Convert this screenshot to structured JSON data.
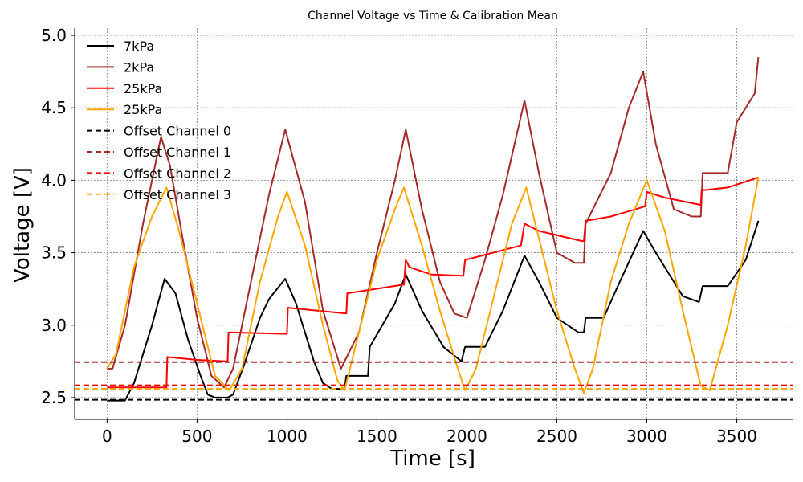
{
  "chart_data": {
    "type": "line",
    "title": "Channel Voltage vs Time & Calibration Mean",
    "xlabel": "Time [s]",
    "ylabel": "Voltage [V]",
    "xlim": [
      -180,
      3810
    ],
    "ylim": [
      2.35,
      5.05
    ],
    "xticks": [
      0,
      500,
      1000,
      1500,
      2000,
      2500,
      3000,
      3500
    ],
    "yticks": [
      2.5,
      3.0,
      3.5,
      4.0,
      4.5,
      5.0
    ],
    "xtick_labels": [
      "0",
      "500",
      "1000",
      "1500",
      "2000",
      "2500",
      "3000",
      "3500"
    ],
    "ytick_labels": [
      "2.5",
      "3.0",
      "3.5",
      "4.0",
      "4.5",
      "5.0"
    ],
    "grid": true,
    "legend_position": "top-left",
    "series": [
      {
        "name": "7kPa",
        "color": "#000000",
        "style": "solid",
        "x": [
          0,
          100,
          150,
          250,
          320,
          380,
          450,
          520,
          560,
          600,
          670,
          700,
          760,
          850,
          900,
          990,
          1050,
          1150,
          1200,
          1250,
          1320,
          1330,
          1450,
          1460,
          1600,
          1660,
          1750,
          1870,
          1970,
          1990,
          2100,
          2200,
          2320,
          2400,
          2500,
          2620,
          2650,
          2660,
          2760,
          2850,
          2980,
          3050,
          3150,
          3200,
          3290,
          3310,
          3450,
          3550,
          3620
        ],
        "y": [
          2.48,
          2.48,
          2.6,
          3.0,
          3.32,
          3.22,
          2.9,
          2.65,
          2.52,
          2.5,
          2.5,
          2.52,
          2.72,
          3.05,
          3.18,
          3.32,
          3.15,
          2.75,
          2.6,
          2.56,
          2.56,
          2.65,
          2.65,
          2.85,
          3.15,
          3.35,
          3.1,
          2.85,
          2.75,
          2.85,
          2.85,
          3.1,
          3.48,
          3.3,
          3.05,
          2.95,
          2.95,
          3.05,
          3.05,
          3.3,
          3.65,
          3.5,
          3.3,
          3.2,
          3.16,
          3.27,
          3.27,
          3.45,
          3.72
        ]
      },
      {
        "name": "2kPa",
        "color": "#a52a2a",
        "style": "solid",
        "x": [
          0,
          30,
          100,
          200,
          300,
          350,
          420,
          500,
          580,
          650,
          700,
          800,
          900,
          990,
          1100,
          1200,
          1300,
          1400,
          1500,
          1600,
          1660,
          1750,
          1850,
          1930,
          2000,
          2100,
          2200,
          2320,
          2400,
          2500,
          2600,
          2650,
          2660,
          2800,
          2900,
          2980,
          3050,
          3150,
          3250,
          3300,
          3310,
          3450,
          3500,
          3600,
          3620
        ],
        "y": [
          2.7,
          2.7,
          3.0,
          3.7,
          4.3,
          4.1,
          3.6,
          3.05,
          2.65,
          2.57,
          2.7,
          3.3,
          3.9,
          4.35,
          3.85,
          3.1,
          2.7,
          2.95,
          3.5,
          4.0,
          4.35,
          3.8,
          3.3,
          3.08,
          3.05,
          3.45,
          3.9,
          4.55,
          4.05,
          3.5,
          3.43,
          3.43,
          3.7,
          4.05,
          4.5,
          4.75,
          4.25,
          3.8,
          3.75,
          3.75,
          4.05,
          4.05,
          4.4,
          4.6,
          4.85
        ]
      },
      {
        "name": "25kPa",
        "color": "#ff0000",
        "style": "solid",
        "x": [
          0,
          330,
          335,
          500,
          670,
          675,
          1000,
          1005,
          1330,
          1335,
          1650,
          1660,
          1680,
          1800,
          1980,
          1990,
          2300,
          2320,
          2400,
          2640,
          2650,
          2660,
          2800,
          2990,
          3000,
          3100,
          3300,
          3305,
          3450,
          3620
        ],
        "y": [
          2.57,
          2.57,
          2.78,
          2.76,
          2.75,
          2.95,
          2.94,
          3.12,
          3.08,
          3.22,
          3.28,
          3.45,
          3.4,
          3.35,
          3.34,
          3.45,
          3.55,
          3.7,
          3.65,
          3.58,
          3.58,
          3.72,
          3.75,
          3.82,
          3.92,
          3.88,
          3.83,
          3.93,
          3.95,
          4.02
        ]
      },
      {
        "name": "25kPa",
        "color": "#ffa500",
        "style": "solid",
        "x": [
          0,
          50,
          150,
          250,
          330,
          400,
          500,
          600,
          680,
          750,
          850,
          950,
          1000,
          1100,
          1200,
          1280,
          1320,
          1400,
          1500,
          1600,
          1650,
          1750,
          1850,
          1950,
          1990,
          2050,
          2150,
          2250,
          2330,
          2400,
          2500,
          2600,
          2650,
          2700,
          2800,
          2900,
          3000,
          3100,
          3200,
          3300,
          3350,
          3450,
          3550,
          3620
        ],
        "y": [
          2.7,
          2.8,
          3.4,
          3.75,
          3.95,
          3.65,
          3.15,
          2.65,
          2.55,
          2.7,
          3.3,
          3.75,
          3.92,
          3.55,
          3.0,
          2.62,
          2.55,
          2.95,
          3.45,
          3.8,
          3.95,
          3.55,
          3.1,
          2.7,
          2.55,
          2.7,
          3.2,
          3.7,
          3.95,
          3.6,
          3.1,
          2.7,
          2.53,
          2.7,
          3.3,
          3.7,
          4.0,
          3.65,
          3.1,
          2.58,
          2.55,
          3.0,
          3.55,
          4.02
        ]
      },
      {
        "name": "Offset Channel 0",
        "color": "#000000",
        "style": "dashed",
        "hline": 2.485
      },
      {
        "name": "Offset Channel 1",
        "color": "#a52a2a",
        "style": "dashed",
        "hline": 2.745
      },
      {
        "name": "Offset Channel 2",
        "color": "#ff0000",
        "style": "dashed",
        "hline": 2.585
      },
      {
        "name": "Offset Channel 3",
        "color": "#ffa500",
        "style": "dashed",
        "hline": 2.56
      }
    ]
  }
}
